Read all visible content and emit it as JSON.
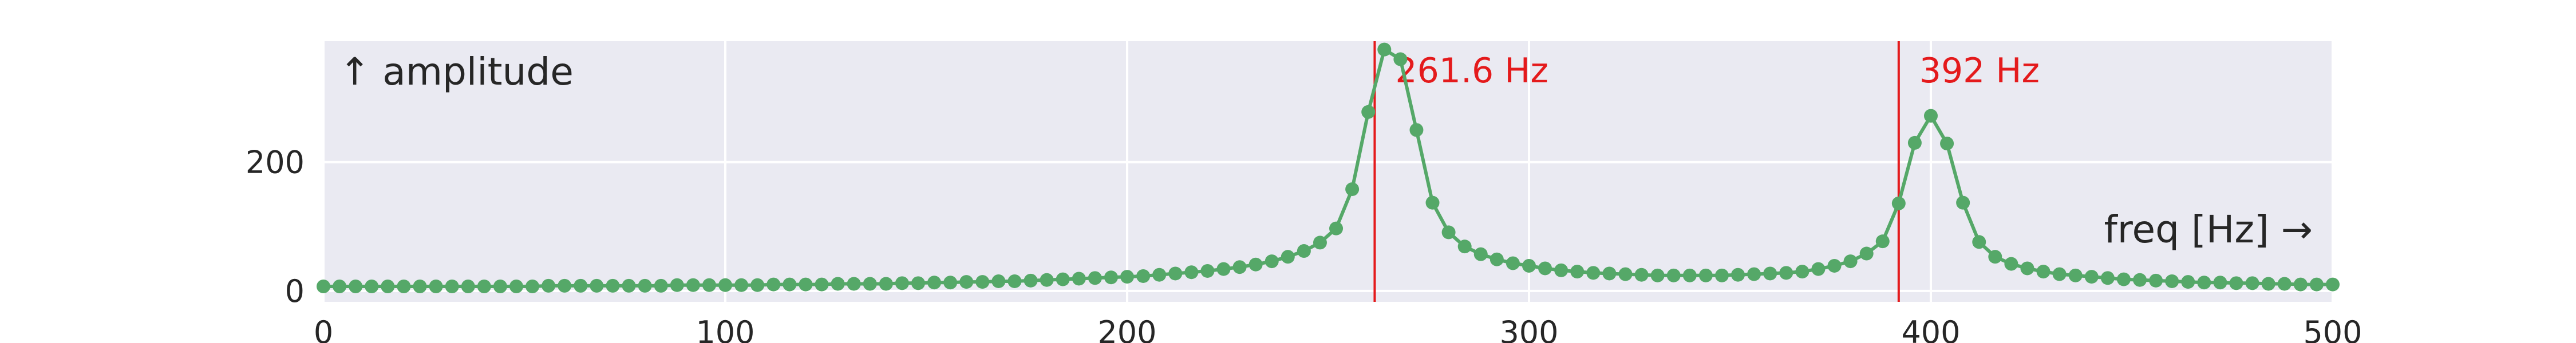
{
  "chart_data": {
    "type": "line",
    "title": "",
    "xlabel": "freq [Hz] →",
    "ylabel": "↑ amplitude",
    "xlim": [
      0,
      500
    ],
    "ylim": [
      -17,
      388
    ],
    "x_ticks": [
      0,
      100,
      200,
      300,
      400,
      500
    ],
    "x_tick_labels": [
      "0",
      "100",
      "200",
      "300",
      "400",
      "500"
    ],
    "y_ticks": [
      0,
      200
    ],
    "y_tick_labels": [
      "0",
      "200"
    ],
    "grid": true,
    "legend": "none",
    "colors": {
      "background": "#eaeaf2",
      "grid": "#ffffff",
      "series": "#55a868",
      "marker_line": "#e41a1c",
      "text": "#262626"
    },
    "series": [
      {
        "x": [
          0,
          4,
          8,
          12,
          16,
          20,
          24,
          28,
          32,
          36,
          40,
          44,
          48,
          52,
          56,
          60,
          64,
          68,
          72,
          76,
          80,
          84,
          88,
          92,
          96,
          100,
          104,
          108,
          112,
          116,
          120,
          124,
          128,
          132,
          136,
          140,
          144,
          148,
          152,
          156,
          160,
          164,
          168,
          172,
          176,
          180,
          184,
          188,
          192,
          196,
          200,
          204,
          208,
          212,
          216,
          220,
          224,
          228,
          232,
          236,
          240,
          244,
          248,
          252,
          256,
          260,
          264,
          268,
          272,
          276,
          280,
          284,
          288,
          292,
          296,
          300,
          304,
          308,
          312,
          316,
          320,
          324,
          328,
          332,
          336,
          340,
          344,
          348,
          352,
          356,
          360,
          364,
          368,
          372,
          376,
          380,
          384,
          388,
          392,
          396,
          400,
          404,
          408,
          412,
          416,
          420,
          424,
          428,
          432,
          436,
          440,
          444,
          448,
          452,
          456,
          460,
          464,
          468,
          472,
          476,
          480,
          484,
          488,
          492,
          496,
          500
        ],
        "y": [
          7,
          7,
          7,
          7,
          7,
          7,
          7,
          7,
          7,
          7,
          7,
          7,
          7,
          7,
          8,
          8,
          8,
          8,
          8,
          8,
          8,
          8,
          9,
          9,
          9,
          9,
          9,
          9,
          10,
          10,
          10,
          10,
          11,
          11,
          11,
          11,
          12,
          12,
          13,
          13,
          14,
          14,
          15,
          15,
          16,
          17,
          18,
          19,
          20,
          21,
          22,
          23,
          25,
          27,
          29,
          31,
          34,
          37,
          41,
          46,
          53,
          62,
          75,
          97,
          158,
          278,
          375,
          360,
          250,
          137,
          91,
          69,
          57,
          49,
          43,
          39,
          35,
          32,
          30,
          28,
          27,
          26,
          25,
          24,
          24,
          24,
          24,
          24,
          25,
          26,
          27,
          28,
          30,
          34,
          39,
          46,
          58,
          77,
          136,
          230,
          272,
          229,
          137,
          76,
          53,
          42,
          35,
          30,
          26,
          24,
          22,
          20,
          18,
          17,
          16,
          15,
          14,
          13,
          13,
          12,
          12,
          11,
          11,
          10,
          10,
          10
        ]
      }
    ],
    "annotations": [
      {
        "x": 261.6,
        "label": "261.6 Hz"
      },
      {
        "x": 392,
        "label": "392 Hz"
      }
    ]
  }
}
